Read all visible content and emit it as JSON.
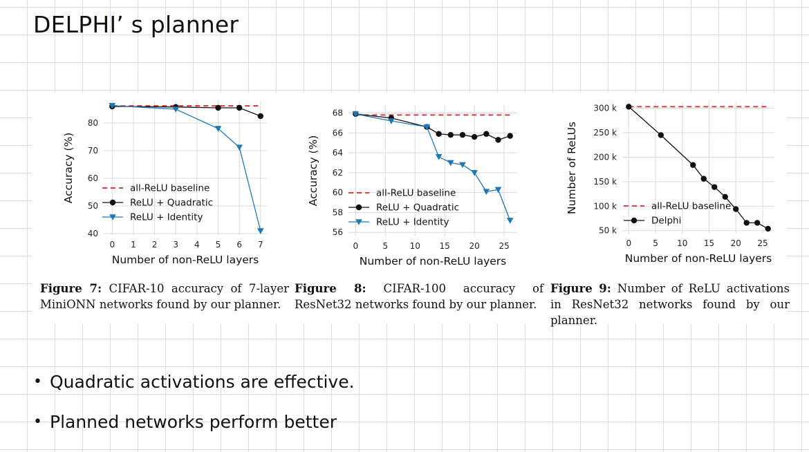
{
  "slide": {
    "title": "DELPHI’ s planner",
    "bullets": [
      "Quadratic activations are effective.",
      "Planned networks perform better"
    ]
  },
  "colors": {
    "red": "#d62728",
    "blue": "#1f77b4",
    "black": "#111111",
    "grid": "#d9d9d9"
  },
  "captions": [
    {
      "label": "Figure 7:",
      "text": " CIFAR-10 accuracy of 7-layer Mini­ONN networks found by our planner."
    },
    {
      "label": "Figure 8:",
      "text": " CIFAR-100 accuracy of ResNet32 networks found by our planner."
    },
    {
      "label": "Figure 9:",
      "text": " Number of ReLU activations in ResNet32 networks found by our planner."
    }
  ],
  "chart_data": [
    {
      "type": "line",
      "xlabel": "Number of non-ReLU layers",
      "ylabel": "Accuracy (%)",
      "xlim": [
        -0.4,
        7.3
      ],
      "ylim": [
        39.5,
        88
      ],
      "xticks": [
        0,
        1,
        2,
        3,
        4,
        5,
        6,
        7
      ],
      "yticks": [
        40,
        50,
        60,
        70,
        80
      ],
      "ytick_labels": [
        "40",
        "50",
        "60",
        "70",
        "80"
      ],
      "legend_position": "lower-left",
      "series": [
        {
          "name": "all-ReLU baseline",
          "style": "dashed",
          "color": "#d62728",
          "marker": "none",
          "x": [
            0,
            7
          ],
          "y": [
            86.2,
            86.2
          ]
        },
        {
          "name": "ReLU + Quadratic",
          "style": "solid",
          "color": "#111111",
          "marker": "circle",
          "x": [
            0,
            3,
            5,
            6,
            7
          ],
          "y": [
            86.0,
            85.8,
            85.5,
            85.5,
            82.5
          ]
        },
        {
          "name": "ReLU + Identity",
          "style": "solid",
          "color": "#1f77b4",
          "marker": "triangle",
          "x": [
            0,
            3,
            5,
            6,
            7
          ],
          "y": [
            86.3,
            85.0,
            78.0,
            71.2,
            41.0
          ]
        }
      ]
    },
    {
      "type": "line",
      "xlabel": "Number of non-ReLU layers",
      "ylabel": "Accuracy (%)",
      "xlim": [
        -1.2,
        27.2
      ],
      "ylim": [
        55.6,
        68.8
      ],
      "xticks": [
        0,
        5,
        10,
        15,
        20,
        25
      ],
      "yticks": [
        56,
        58,
        60,
        62,
        64,
        66,
        68
      ],
      "ytick_labels": [
        "56",
        "58",
        "60",
        "62",
        "64",
        "66",
        "68"
      ],
      "legend_position": "lower-left",
      "series": [
        {
          "name": "all-ReLU baseline",
          "style": "dashed",
          "color": "#d62728",
          "marker": "none",
          "x": [
            0,
            26
          ],
          "y": [
            67.8,
            67.8
          ]
        },
        {
          "name": "ReLU + Quadratic",
          "style": "solid",
          "color": "#111111",
          "marker": "circle",
          "x": [
            0,
            6,
            12,
            14,
            16,
            18,
            20,
            22,
            24,
            26
          ],
          "y": [
            67.9,
            67.5,
            66.6,
            65.9,
            65.8,
            65.8,
            65.6,
            65.9,
            65.3,
            65.7
          ]
        },
        {
          "name": "ReLU + Identity",
          "style": "solid",
          "color": "#1f77b4",
          "marker": "triangle",
          "x": [
            0,
            6,
            12,
            14,
            16,
            18,
            20,
            22,
            24,
            26
          ],
          "y": [
            67.9,
            67.2,
            66.6,
            63.6,
            63.0,
            62.8,
            62.0,
            60.1,
            60.3,
            57.2
          ]
        }
      ]
    },
    {
      "type": "line",
      "xlabel": "Number of non-ReLU layers",
      "ylabel": "Number of ReLUs",
      "xlim": [
        -1.2,
        27.2
      ],
      "ylim": [
        44,
        312
      ],
      "xticks": [
        0,
        5,
        10,
        15,
        20,
        25
      ],
      "yticks": [
        50,
        100,
        150,
        200,
        250,
        300
      ],
      "ytick_labels": [
        "50 k",
        "100 k",
        "150 k",
        "200 k",
        "250 k",
        "300 k"
      ],
      "legend_position": "lower-left",
      "series": [
        {
          "name": "all-ReLU baseline",
          "style": "dashed",
          "color": "#d62728",
          "marker": "none",
          "x": [
            0,
            26
          ],
          "y": [
            303,
            303
          ]
        },
        {
          "name": "Delphi",
          "style": "solid",
          "color": "#111111",
          "marker": "circle",
          "x": [
            0,
            6,
            12,
            14,
            16,
            18,
            20,
            22,
            24,
            26
          ],
          "y": [
            303,
            245,
            184,
            156,
            139,
            119,
            94,
            66,
            66,
            54
          ]
        }
      ]
    }
  ]
}
